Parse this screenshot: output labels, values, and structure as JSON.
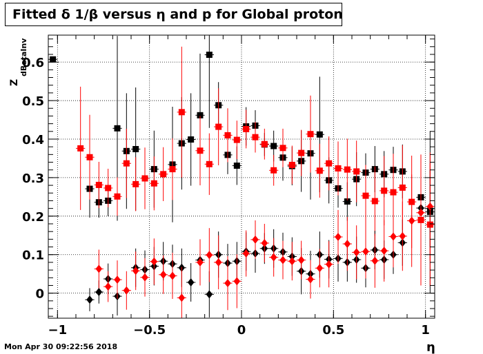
{
  "title": "Fitted δ 1/β versus η and p for Global proton",
  "timestamp": "Mon Apr 30 09:22:56 2018",
  "chart_data": {
    "type": "scatter",
    "title": "Fitted δ 1/β versus η and p for Global proton",
    "xlabel": "η",
    "ylabel_main": "Z",
    "ylabel_sub": "dBetaInv",
    "xlim": [
      -1.05,
      1.05
    ],
    "ylim": [
      -0.065,
      0.67
    ],
    "grid": true,
    "x_ticks": [
      {
        "value": -1,
        "label": "−1"
      },
      {
        "value": -0.5,
        "label": "−0.5"
      },
      {
        "value": 0,
        "label": "0"
      },
      {
        "value": 0.5,
        "label": "0.5"
      },
      {
        "value": 1,
        "label": "1"
      }
    ],
    "y_ticks": [
      {
        "value": 0,
        "label": "0"
      },
      {
        "value": 0.1,
        "label": "0.1"
      },
      {
        "value": 0.2,
        "label": "0.2"
      },
      {
        "value": 0.3,
        "label": "0.3"
      },
      {
        "value": 0.4,
        "label": "0.4"
      },
      {
        "value": 0.5,
        "label": "0.5"
      },
      {
        "value": 0.6,
        "label": "0.6"
      }
    ],
    "series": [
      {
        "marker": "square",
        "color": "#000000",
        "points": [
          {
            "x": -1.025,
            "y": 0.607,
            "err": 0.0
          },
          {
            "x": -0.825,
            "y": 0.271,
            "err": 0.075
          },
          {
            "x": -0.775,
            "y": 0.236,
            "err": 0.04
          },
          {
            "x": -0.725,
            "y": 0.24,
            "err": 0.04
          },
          {
            "x": -0.675,
            "y": 0.428,
            "err": 0.24
          },
          {
            "x": -0.625,
            "y": 0.369,
            "err": 0.15
          },
          {
            "x": -0.575,
            "y": 0.374,
            "err": 0.16
          },
          {
            "x": -0.475,
            "y": 0.322,
            "err": 0.1
          },
          {
            "x": -0.375,
            "y": 0.334,
            "err": 0.15
          },
          {
            "x": -0.325,
            "y": 0.389,
            "err": 0.12
          },
          {
            "x": -0.275,
            "y": 0.399,
            "err": 0.12
          },
          {
            "x": -0.225,
            "y": 0.462,
            "err": 0.16
          },
          {
            "x": -0.175,
            "y": 0.619,
            "err": 0.19
          },
          {
            "x": -0.125,
            "y": 0.488,
            "err": 0.06
          },
          {
            "x": -0.075,
            "y": 0.359,
            "err": 0.05
          },
          {
            "x": -0.025,
            "y": 0.331,
            "err": 0.05
          },
          {
            "x": 0.025,
            "y": 0.433,
            "err": 0.05
          },
          {
            "x": 0.075,
            "y": 0.435,
            "err": 0.04
          },
          {
            "x": 0.125,
            "y": 0.386,
            "err": 0.03
          },
          {
            "x": 0.175,
            "y": 0.382,
            "err": 0.04
          },
          {
            "x": 0.225,
            "y": 0.352,
            "err": 0.06
          },
          {
            "x": 0.275,
            "y": 0.33,
            "err": 0.05
          },
          {
            "x": 0.325,
            "y": 0.343,
            "err": 0.08
          },
          {
            "x": 0.375,
            "y": 0.363,
            "err": 0.12
          },
          {
            "x": 0.425,
            "y": 0.412,
            "err": 0.15
          },
          {
            "x": 0.475,
            "y": 0.293,
            "err": 0.06
          },
          {
            "x": 0.525,
            "y": 0.272,
            "err": 0.05
          },
          {
            "x": 0.575,
            "y": 0.238,
            "err": 0.05
          },
          {
            "x": 0.625,
            "y": 0.296,
            "err": 0.07
          },
          {
            "x": 0.675,
            "y": 0.313,
            "err": 0.05
          },
          {
            "x": 0.725,
            "y": 0.322,
            "err": 0.06
          },
          {
            "x": 0.775,
            "y": 0.309,
            "err": 0.06
          },
          {
            "x": 0.825,
            "y": 0.32,
            "err": 0.06
          },
          {
            "x": 0.875,
            "y": 0.316,
            "err": 0.07
          },
          {
            "x": 0.975,
            "y": 0.249,
            "err": 0.08
          },
          {
            "x": 1.025,
            "y": 0.211,
            "err": 0.21
          }
        ]
      },
      {
        "marker": "square",
        "color": "#ff0000",
        "points": [
          {
            "x": -0.875,
            "y": 0.376,
            "err": 0.16
          },
          {
            "x": -0.825,
            "y": 0.353,
            "err": 0.11
          },
          {
            "x": -0.775,
            "y": 0.281,
            "err": 0.06
          },
          {
            "x": -0.725,
            "y": 0.273,
            "err": 0.05
          },
          {
            "x": -0.675,
            "y": 0.251,
            "err": 0.05
          },
          {
            "x": -0.625,
            "y": 0.337,
            "err": 0.09
          },
          {
            "x": -0.575,
            "y": 0.283,
            "err": 0.07
          },
          {
            "x": -0.525,
            "y": 0.298,
            "err": 0.08
          },
          {
            "x": -0.475,
            "y": 0.285,
            "err": 0.07
          },
          {
            "x": -0.425,
            "y": 0.309,
            "err": 0.07
          },
          {
            "x": -0.375,
            "y": 0.322,
            "err": 0.08
          },
          {
            "x": -0.325,
            "y": 0.47,
            "err": 0.17
          },
          {
            "x": -0.225,
            "y": 0.37,
            "err": 0.09
          },
          {
            "x": -0.175,
            "y": 0.335,
            "err": 0.08
          },
          {
            "x": -0.125,
            "y": 0.432,
            "err": 0.1
          },
          {
            "x": -0.075,
            "y": 0.41,
            "err": 0.07
          },
          {
            "x": -0.025,
            "y": 0.398,
            "err": 0.05
          },
          {
            "x": 0.025,
            "y": 0.426,
            "err": 0.05
          },
          {
            "x": 0.075,
            "y": 0.405,
            "err": 0.04
          },
          {
            "x": 0.125,
            "y": 0.387,
            "err": 0.04
          },
          {
            "x": 0.175,
            "y": 0.319,
            "err": 0.04
          },
          {
            "x": 0.225,
            "y": 0.377,
            "err": 0.05
          },
          {
            "x": 0.275,
            "y": 0.333,
            "err": 0.05
          },
          {
            "x": 0.325,
            "y": 0.364,
            "err": 0.06
          },
          {
            "x": 0.375,
            "y": 0.413,
            "err": 0.1
          },
          {
            "x": 0.425,
            "y": 0.318,
            "err": 0.07
          },
          {
            "x": 0.475,
            "y": 0.337,
            "err": 0.07
          },
          {
            "x": 0.525,
            "y": 0.324,
            "err": 0.07
          },
          {
            "x": 0.575,
            "y": 0.321,
            "err": 0.08
          },
          {
            "x": 0.625,
            "y": 0.316,
            "err": 0.08
          },
          {
            "x": 0.675,
            "y": 0.253,
            "err": 0.08
          },
          {
            "x": 0.725,
            "y": 0.239,
            "err": 0.09
          },
          {
            "x": 0.775,
            "y": 0.266,
            "err": 0.09
          },
          {
            "x": 0.825,
            "y": 0.262,
            "err": 0.1
          },
          {
            "x": 0.875,
            "y": 0.274,
            "err": 0.11
          },
          {
            "x": 0.925,
            "y": 0.237,
            "err": 0.12
          },
          {
            "x": 0.975,
            "y": 0.19,
            "err": 0.17
          },
          {
            "x": 1.025,
            "y": 0.178,
            "err": 0.16
          }
        ]
      },
      {
        "marker": "diamond",
        "color": "#000000",
        "points": [
          {
            "x": -0.825,
            "y": -0.017,
            "err": 0.03
          },
          {
            "x": -0.775,
            "y": 0.003,
            "err": 0.03
          },
          {
            "x": -0.725,
            "y": 0.037,
            "err": 0.04
          },
          {
            "x": -0.675,
            "y": -0.008,
            "err": 0.05
          },
          {
            "x": -0.575,
            "y": 0.066,
            "err": 0.05
          },
          {
            "x": -0.525,
            "y": 0.061,
            "err": 0.05
          },
          {
            "x": -0.475,
            "y": 0.07,
            "err": 0.05
          },
          {
            "x": -0.425,
            "y": 0.083,
            "err": 0.05
          },
          {
            "x": -0.375,
            "y": 0.076,
            "err": 0.05
          },
          {
            "x": -0.325,
            "y": 0.066,
            "err": 0.05
          },
          {
            "x": -0.275,
            "y": 0.028,
            "err": 0.05
          },
          {
            "x": -0.225,
            "y": 0.086,
            "err": 0.05
          },
          {
            "x": -0.175,
            "y": -0.003,
            "err": 0.06
          },
          {
            "x": -0.125,
            "y": 0.1,
            "err": 0.06
          },
          {
            "x": -0.075,
            "y": 0.078,
            "err": 0.05
          },
          {
            "x": -0.025,
            "y": 0.083,
            "err": 0.05
          },
          {
            "x": 0.025,
            "y": 0.108,
            "err": 0.05
          },
          {
            "x": 0.075,
            "y": 0.103,
            "err": 0.05
          },
          {
            "x": 0.125,
            "y": 0.116,
            "err": 0.04
          },
          {
            "x": 0.175,
            "y": 0.116,
            "err": 0.05
          },
          {
            "x": 0.225,
            "y": 0.107,
            "err": 0.05
          },
          {
            "x": 0.275,
            "y": 0.095,
            "err": 0.05
          },
          {
            "x": 0.325,
            "y": 0.057,
            "err": 0.06
          },
          {
            "x": 0.375,
            "y": 0.05,
            "err": 0.06
          },
          {
            "x": 0.425,
            "y": 0.1,
            "err": 0.06
          },
          {
            "x": 0.475,
            "y": 0.088,
            "err": 0.05
          },
          {
            "x": 0.525,
            "y": 0.09,
            "err": 0.06
          },
          {
            "x": 0.575,
            "y": 0.08,
            "err": 0.05
          },
          {
            "x": 0.625,
            "y": 0.087,
            "err": 0.06
          },
          {
            "x": 0.675,
            "y": 0.065,
            "err": 0.05
          },
          {
            "x": 0.725,
            "y": 0.112,
            "err": 0.05
          },
          {
            "x": 0.775,
            "y": 0.087,
            "err": 0.05
          },
          {
            "x": 0.825,
            "y": 0.1,
            "err": 0.05
          },
          {
            "x": 0.875,
            "y": 0.131,
            "err": 0.06
          },
          {
            "x": 0.975,
            "y": 0.221,
            "err": 0.1
          },
          {
            "x": 1.025,
            "y": 0.22,
            "err": 0.1
          }
        ]
      },
      {
        "marker": "diamond",
        "color": "#ff0000",
        "points": [
          {
            "x": -0.775,
            "y": 0.063,
            "err": 0.05
          },
          {
            "x": -0.725,
            "y": 0.017,
            "err": 0.04
          },
          {
            "x": -0.675,
            "y": 0.035,
            "err": 0.05
          },
          {
            "x": -0.625,
            "y": 0.007,
            "err": 0.05
          },
          {
            "x": -0.575,
            "y": 0.058,
            "err": 0.05
          },
          {
            "x": -0.525,
            "y": 0.041,
            "err": 0.05
          },
          {
            "x": -0.475,
            "y": 0.082,
            "err": 0.06
          },
          {
            "x": -0.425,
            "y": 0.048,
            "err": 0.05
          },
          {
            "x": -0.375,
            "y": 0.045,
            "err": 0.06
          },
          {
            "x": -0.325,
            "y": -0.012,
            "err": 0.08
          },
          {
            "x": -0.225,
            "y": 0.08,
            "err": 0.06
          },
          {
            "x": -0.175,
            "y": 0.099,
            "err": 0.07
          },
          {
            "x": -0.125,
            "y": 0.08,
            "err": 0.07
          },
          {
            "x": -0.075,
            "y": 0.026,
            "err": 0.07
          },
          {
            "x": -0.025,
            "y": 0.031,
            "err": 0.07
          },
          {
            "x": 0.025,
            "y": 0.103,
            "err": 0.06
          },
          {
            "x": 0.075,
            "y": 0.139,
            "err": 0.05
          },
          {
            "x": 0.125,
            "y": 0.13,
            "err": 0.05
          },
          {
            "x": 0.175,
            "y": 0.093,
            "err": 0.05
          },
          {
            "x": 0.225,
            "y": 0.086,
            "err": 0.05
          },
          {
            "x": 0.275,
            "y": 0.083,
            "err": 0.05
          },
          {
            "x": 0.325,
            "y": 0.086,
            "err": 0.05
          },
          {
            "x": 0.375,
            "y": 0.036,
            "err": 0.05
          },
          {
            "x": 0.425,
            "y": 0.065,
            "err": 0.05
          },
          {
            "x": 0.475,
            "y": 0.075,
            "err": 0.06
          },
          {
            "x": 0.525,
            "y": 0.146,
            "err": 0.07
          },
          {
            "x": 0.575,
            "y": 0.128,
            "err": 0.07
          },
          {
            "x": 0.625,
            "y": 0.106,
            "err": 0.07
          },
          {
            "x": 0.675,
            "y": 0.108,
            "err": 0.07
          },
          {
            "x": 0.725,
            "y": 0.084,
            "err": 0.07
          },
          {
            "x": 0.775,
            "y": 0.11,
            "err": 0.08
          },
          {
            "x": 0.825,
            "y": 0.147,
            "err": 0.08
          },
          {
            "x": 0.875,
            "y": 0.148,
            "err": 0.09
          },
          {
            "x": 0.925,
            "y": 0.188,
            "err": 0.12
          },
          {
            "x": 0.975,
            "y": 0.209,
            "err": 0.13
          },
          {
            "x": 1.025,
            "y": 0.225,
            "err": 0.14
          }
        ]
      }
    ]
  }
}
